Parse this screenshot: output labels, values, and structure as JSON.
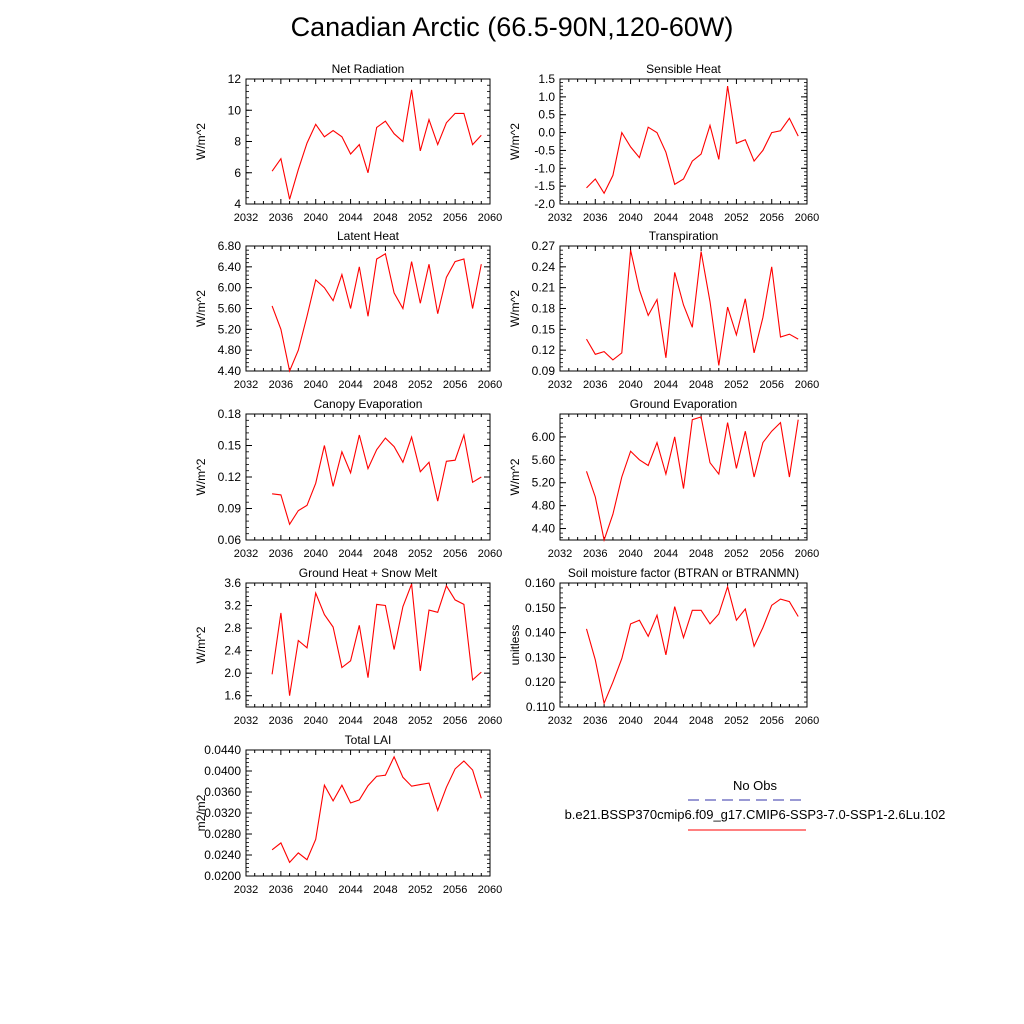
{
  "title": "Canadian Arctic (66.5-90N,120-60W)",
  "legend": {
    "obs_label": "No Obs",
    "obs_color": "#3333aa",
    "case_label": "b.e21.BSSP370cmip6.f09_g17.CMIP6-SSP3-7.0-SSP1-2.6Lu.102",
    "case_color": "#ff0000"
  },
  "line_color": "#ff0000",
  "chart_data": [
    {
      "type": "line",
      "title": "Net Radiation",
      "ylabel": "W/m^2",
      "xlim": [
        2032,
        2060
      ],
      "ylim": [
        4,
        12
      ],
      "xticks": [
        "2032",
        "2036",
        "2040",
        "2044",
        "2048",
        "2052",
        "2056",
        "2060"
      ],
      "yticks": [
        "4",
        "6",
        "8",
        "10",
        "12"
      ],
      "x": [
        2035,
        2036,
        2037,
        2038,
        2039,
        2040,
        2041,
        2042,
        2043,
        2044,
        2045,
        2046,
        2047,
        2048,
        2049,
        2050,
        2051,
        2052,
        2053,
        2054,
        2055,
        2056,
        2057,
        2058,
        2059
      ],
      "values": [
        6.1,
        6.9,
        4.3,
        6.2,
        7.9,
        9.1,
        8.3,
        8.7,
        8.3,
        7.2,
        7.8,
        6.0,
        8.9,
        9.3,
        8.5,
        8.0,
        11.3,
        7.4,
        9.4,
        7.8,
        9.2,
        9.8,
        9.8,
        7.8,
        8.4
      ]
    },
    {
      "type": "line",
      "title": "Sensible Heat",
      "ylabel": "W/m^2",
      "xlim": [
        2032,
        2060
      ],
      "ylim": [
        -2.0,
        1.5
      ],
      "xticks": [
        "2032",
        "2036",
        "2040",
        "2044",
        "2048",
        "2052",
        "2056",
        "2060"
      ],
      "yticks": [
        "-2.0",
        "-1.5",
        "-1.0",
        "-0.5",
        "0.0",
        "0.5",
        "1.0",
        "1.5"
      ],
      "x": [
        2035,
        2036,
        2037,
        2038,
        2039,
        2040,
        2041,
        2042,
        2043,
        2044,
        2045,
        2046,
        2047,
        2048,
        2049,
        2050,
        2051,
        2052,
        2053,
        2054,
        2055,
        2056,
        2057,
        2058,
        2059
      ],
      "values": [
        -1.55,
        -1.3,
        -1.7,
        -1.2,
        0.0,
        -0.4,
        -0.7,
        0.15,
        0.0,
        -0.55,
        -1.45,
        -1.3,
        -0.8,
        -0.6,
        0.2,
        -0.75,
        1.3,
        -0.3,
        -0.2,
        -0.8,
        -0.5,
        0.0,
        0.05,
        0.4,
        -0.1
      ]
    },
    {
      "type": "line",
      "title": "Latent Heat",
      "ylabel": "W/m^2",
      "xlim": [
        2032,
        2060
      ],
      "ylim": [
        4.4,
        6.8
      ],
      "xticks": [
        "2032",
        "2036",
        "2040",
        "2044",
        "2048",
        "2052",
        "2056",
        "2060"
      ],
      "yticks": [
        "4.40",
        "4.80",
        "5.20",
        "5.60",
        "6.00",
        "6.40",
        "6.80"
      ],
      "x": [
        2035,
        2036,
        2037,
        2038,
        2039,
        2040,
        2041,
        2042,
        2043,
        2044,
        2045,
        2046,
        2047,
        2048,
        2049,
        2050,
        2051,
        2052,
        2053,
        2054,
        2055,
        2056,
        2057,
        2058,
        2059
      ],
      "values": [
        5.65,
        5.2,
        4.4,
        4.8,
        5.45,
        6.15,
        6.0,
        5.75,
        6.25,
        5.6,
        6.4,
        5.45,
        6.55,
        6.65,
        5.9,
        5.6,
        6.5,
        5.7,
        6.45,
        5.5,
        6.2,
        6.5,
        6.55,
        5.6,
        6.45
      ]
    },
    {
      "type": "line",
      "title": "Transpiration",
      "ylabel": "W/m^2",
      "xlim": [
        2032,
        2060
      ],
      "ylim": [
        0.09,
        0.27
      ],
      "xticks": [
        "2032",
        "2036",
        "2040",
        "2044",
        "2048",
        "2052",
        "2056",
        "2060"
      ],
      "yticks": [
        "0.09",
        "0.12",
        "0.15",
        "0.18",
        "0.21",
        "0.24",
        "0.27"
      ],
      "x": [
        2035,
        2036,
        2037,
        2038,
        2039,
        2040,
        2041,
        2042,
        2043,
        2044,
        2045,
        2046,
        2047,
        2048,
        2049,
        2050,
        2051,
        2052,
        2053,
        2054,
        2055,
        2056,
        2057,
        2058,
        2059
      ],
      "values": [
        0.136,
        0.114,
        0.118,
        0.106,
        0.116,
        0.264,
        0.207,
        0.17,
        0.193,
        0.109,
        0.232,
        0.185,
        0.153,
        0.262,
        0.19,
        0.098,
        0.182,
        0.142,
        0.194,
        0.116,
        0.167,
        0.24,
        0.139,
        0.143,
        0.136
      ]
    },
    {
      "type": "line",
      "title": "Canopy Evaporation",
      "ylabel": "W/m^2",
      "xlim": [
        2032,
        2060
      ],
      "ylim": [
        0.06,
        0.18
      ],
      "xticks": [
        "2032",
        "2036",
        "2040",
        "2044",
        "2048",
        "2052",
        "2056",
        "2060"
      ],
      "yticks": [
        "0.06",
        "0.09",
        "0.12",
        "0.15",
        "0.18"
      ],
      "x": [
        2035,
        2036,
        2037,
        2038,
        2039,
        2040,
        2041,
        2042,
        2043,
        2044,
        2045,
        2046,
        2047,
        2048,
        2049,
        2050,
        2051,
        2052,
        2053,
        2054,
        2055,
        2056,
        2057,
        2058,
        2059
      ],
      "values": [
        0.104,
        0.103,
        0.075,
        0.088,
        0.093,
        0.114,
        0.15,
        0.111,
        0.144,
        0.124,
        0.16,
        0.128,
        0.146,
        0.157,
        0.149,
        0.134,
        0.158,
        0.125,
        0.134,
        0.097,
        0.135,
        0.136,
        0.16,
        0.115,
        0.12
      ]
    },
    {
      "type": "line",
      "title": "Ground Evaporation",
      "ylabel": "W/m^2",
      "xlim": [
        2032,
        2060
      ],
      "ylim": [
        4.2,
        6.4
      ],
      "xticks": [
        "2032",
        "2036",
        "2040",
        "2044",
        "2048",
        "2052",
        "2056",
        "2060"
      ],
      "yticks": [
        "4.40",
        "4.80",
        "5.20",
        "5.60",
        "6.00"
      ],
      "x": [
        2035,
        2036,
        2037,
        2038,
        2039,
        2040,
        2041,
        2042,
        2043,
        2044,
        2045,
        2046,
        2047,
        2048,
        2049,
        2050,
        2051,
        2052,
        2053,
        2054,
        2055,
        2056,
        2057,
        2058,
        2059
      ],
      "values": [
        5.4,
        4.95,
        4.2,
        4.65,
        5.3,
        5.75,
        5.6,
        5.5,
        5.9,
        5.35,
        6.0,
        5.1,
        6.3,
        6.35,
        5.55,
        5.35,
        6.25,
        5.45,
        6.1,
        5.3,
        5.9,
        6.1,
        6.25,
        5.3,
        6.3
      ]
    },
    {
      "type": "line",
      "title": "Ground Heat + Snow Melt",
      "ylabel": "W/m^2",
      "xlim": [
        2032,
        2060
      ],
      "ylim": [
        1.4,
        3.6
      ],
      "xticks": [
        "2032",
        "2036",
        "2040",
        "2044",
        "2048",
        "2052",
        "2056",
        "2060"
      ],
      "yticks": [
        "1.6",
        "2.0",
        "2.4",
        "2.8",
        "3.2",
        "3.6"
      ],
      "x": [
        2035,
        2036,
        2037,
        2038,
        2039,
        2040,
        2041,
        2042,
        2043,
        2044,
        2045,
        2046,
        2047,
        2048,
        2049,
        2050,
        2051,
        2052,
        2053,
        2054,
        2055,
        2056,
        2057,
        2058,
        2059
      ],
      "values": [
        1.98,
        3.07,
        1.6,
        2.58,
        2.45,
        3.42,
        3.04,
        2.82,
        2.1,
        2.22,
        2.85,
        1.92,
        3.22,
        3.2,
        2.42,
        3.18,
        3.58,
        2.04,
        3.12,
        3.08,
        3.55,
        3.3,
        3.22,
        1.88,
        2.02
      ]
    },
    {
      "type": "line",
      "title": "Soil moisture factor (BTRAN or BTRANMN)",
      "ylabel": "unitless",
      "xlim": [
        2032,
        2060
      ],
      "ylim": [
        0.11,
        0.16
      ],
      "xticks": [
        "2032",
        "2036",
        "2040",
        "2044",
        "2048",
        "2052",
        "2056",
        "2060"
      ],
      "yticks": [
        "0.110",
        "0.120",
        "0.130",
        "0.140",
        "0.150",
        "0.160"
      ],
      "x": [
        2035,
        2036,
        2037,
        2038,
        2039,
        2040,
        2041,
        2042,
        2043,
        2044,
        2045,
        2046,
        2047,
        2048,
        2049,
        2050,
        2051,
        2052,
        2053,
        2054,
        2055,
        2056,
        2057,
        2058,
        2059
      ],
      "values": [
        0.1415,
        0.129,
        0.1115,
        0.12,
        0.1295,
        0.1435,
        0.145,
        0.1385,
        0.147,
        0.131,
        0.1505,
        0.138,
        0.149,
        0.149,
        0.1435,
        0.1475,
        0.1585,
        0.145,
        0.1495,
        0.1345,
        0.142,
        0.151,
        0.1535,
        0.1525,
        0.1465
      ]
    },
    {
      "type": "line",
      "title": "Total LAI",
      "ylabel": "m2/m2",
      "xlim": [
        2032,
        2060
      ],
      "ylim": [
        0.02,
        0.044
      ],
      "xticks": [
        "2032",
        "2036",
        "2040",
        "2044",
        "2048",
        "2052",
        "2056",
        "2060"
      ],
      "yticks": [
        "0.0200",
        "0.0240",
        "0.0280",
        "0.0320",
        "0.0360",
        "0.0400",
        "0.0440"
      ],
      "x": [
        2035,
        2036,
        2037,
        2038,
        2039,
        2040,
        2041,
        2042,
        2043,
        2044,
        2045,
        2046,
        2047,
        2048,
        2049,
        2050,
        2051,
        2052,
        2053,
        2054,
        2055,
        2056,
        2057,
        2058,
        2059
      ],
      "values": [
        0.025,
        0.0263,
        0.0226,
        0.0244,
        0.0231,
        0.027,
        0.0373,
        0.0343,
        0.0373,
        0.0339,
        0.0345,
        0.0372,
        0.039,
        0.0392,
        0.0427,
        0.0388,
        0.0371,
        0.0374,
        0.0377,
        0.0325,
        0.0369,
        0.0404,
        0.0419,
        0.0402,
        0.0348
      ]
    }
  ]
}
